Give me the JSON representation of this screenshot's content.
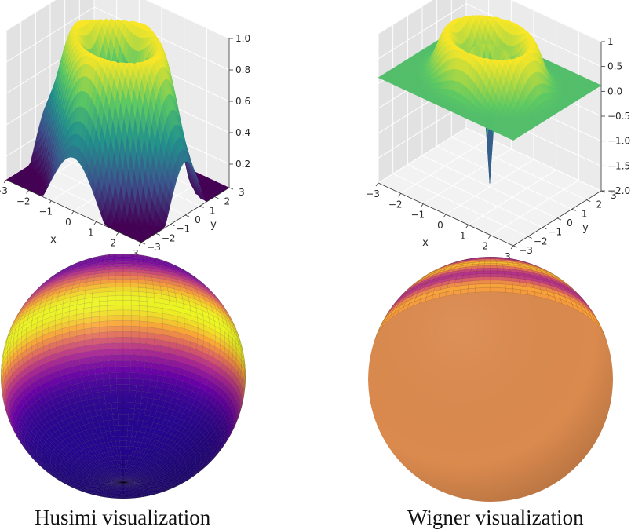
{
  "captions": {
    "husimi": "Husimi visualization",
    "wigner": "Wigner visualization"
  },
  "chart_data": [
    {
      "type": "surface3d",
      "function": "husimi",
      "xlabel": "x",
      "ylabel": "y",
      "xticks": [
        "−3",
        "−2",
        "−1",
        "0",
        "1",
        "2",
        "3"
      ],
      "yticks": [
        "−3",
        "−2",
        "−1",
        "0",
        "1",
        "2",
        "3"
      ],
      "zticks": [
        "0.2",
        "0.4",
        "0.6",
        "0.8",
        "1.0"
      ],
      "xlim": [
        -3,
        3
      ],
      "ylim": [
        -3,
        3
      ],
      "zlim": [
        0.05,
        1.0
      ],
      "colormap": "viridis",
      "colormap_stops": [
        "#440154",
        "#3b528b",
        "#21918c",
        "#5ec962",
        "#fde725"
      ]
    },
    {
      "type": "surface3d",
      "function": "wigner",
      "xlabel": "x",
      "ylabel": "y",
      "xticks": [
        "−3",
        "−2",
        "−1",
        "0",
        "1",
        "2",
        "3"
      ],
      "yticks": [
        "−3",
        "−2",
        "−1",
        "0",
        "1",
        "2",
        "3"
      ],
      "zticks": [
        "1",
        "0.5",
        "0.0",
        "−0.5",
        "−1.0",
        "−1.5",
        "−2.0"
      ],
      "xlim": [
        -3,
        3
      ],
      "ylim": [
        -3,
        3
      ],
      "zlim": [
        -2.0,
        1.0
      ],
      "colormap": "viridis",
      "colormap_stops": [
        "#440154",
        "#3b528b",
        "#21918c",
        "#5ec962",
        "#fde725"
      ]
    },
    {
      "type": "sphere",
      "function": "husimi",
      "colormap": "plasma",
      "colormap_stops": [
        "#0d0887",
        "#6a00a8",
        "#b12a90",
        "#e16462",
        "#fca636",
        "#f0f921"
      ]
    },
    {
      "type": "sphere",
      "function": "wigner",
      "colormap": "plasma",
      "colormap_stops": [
        "#0d0887",
        "#6a00a8",
        "#b12a90",
        "#e16462",
        "#fca636",
        "#f0f921"
      ],
      "background_color": "#db8a4e"
    }
  ]
}
